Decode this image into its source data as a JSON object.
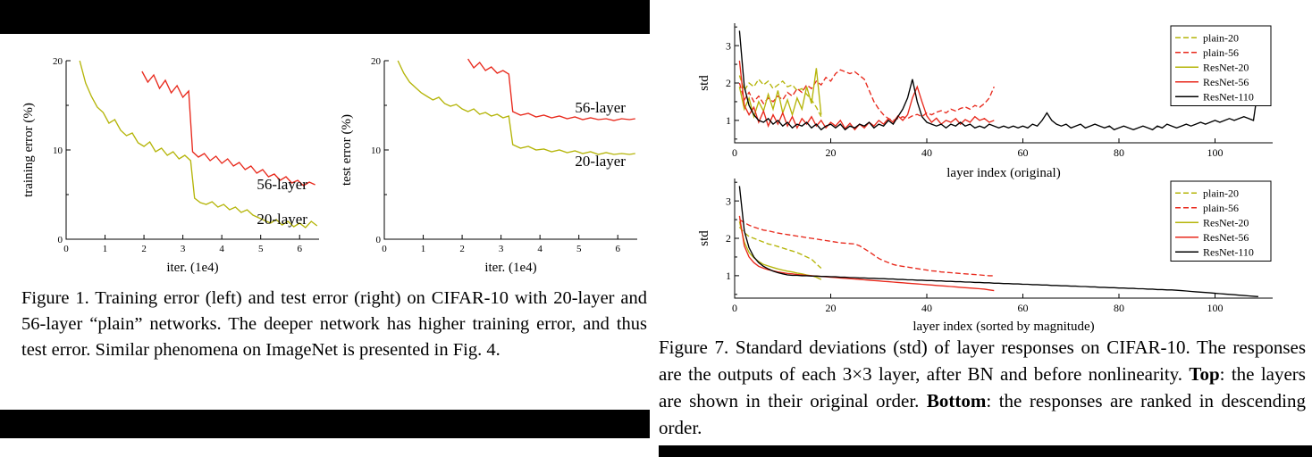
{
  "figure1": {
    "caption": "Figure 1. Training error (left) and test error (right) on CIFAR-10 with 20-layer and 56-layer “plain” networks. The deeper network has higher training error, and thus test error. Similar phenomena on ImageNet is presented in Fig. 4."
  },
  "figure7": {
    "caption_segments": [
      {
        "text": "Figure 7. Standard deviations (std) of layer responses on CIFAR-10. The responses are the outputs of each 3×3 layer, after BN and before nonlinearity. ",
        "bold": false
      },
      {
        "text": "Top",
        "bold": true
      },
      {
        "text": ": the layers are shown in their original order. ",
        "bold": false
      },
      {
        "text": "Bottom",
        "bold": true
      },
      {
        "text": ": the responses are ranked in descending order.",
        "bold": false
      }
    ]
  },
  "colors": {
    "yellow": "#b5b50a",
    "red": "#e8291c",
    "black": "#000000"
  },
  "chart_data": [
    {
      "id": "fig1-training-error",
      "type": "line",
      "xlabel": "iter. (1e4)",
      "ylabel": "training error (%)",
      "xlim": [
        0,
        6.5
      ],
      "ylim": [
        0,
        20
      ],
      "xticks": [
        0,
        1,
        2,
        3,
        4,
        5,
        6
      ],
      "yticks": [
        0,
        10,
        20
      ],
      "yticks_minor": [
        5,
        15
      ],
      "tick_fontsize": 11,
      "label_fontsize": 15,
      "annotation_fontsize": 17,
      "legend": false,
      "series": [
        {
          "name": "20-layer",
          "color": "#b5b50a",
          "dash": null,
          "x": [
            0.35,
            0.5,
            0.65,
            0.8,
            0.95,
            1.1,
            1.25,
            1.4,
            1.55,
            1.7,
            1.85,
            2.0,
            2.15,
            2.3,
            2.45,
            2.6,
            2.75,
            2.9,
            3.05,
            3.2,
            3.3,
            3.45,
            3.6,
            3.75,
            3.9,
            4.05,
            4.2,
            4.35,
            4.5,
            4.65,
            4.8,
            4.95,
            5.1,
            5.25,
            5.4,
            5.55,
            5.7,
            5.85,
            6.0,
            6.15,
            6.3,
            6.45
          ],
          "y": [
            20,
            17.5,
            16,
            14.8,
            14.2,
            13.0,
            13.4,
            12.2,
            11.6,
            11.9,
            10.8,
            10.4,
            10.9,
            9.8,
            10.2,
            9.4,
            9.8,
            9.0,
            9.4,
            8.8,
            4.6,
            4.1,
            3.9,
            4.2,
            3.6,
            3.9,
            3.3,
            3.6,
            3.0,
            3.3,
            2.7,
            2.4,
            2.1,
            1.8,
            2.2,
            1.6,
            2.0,
            1.4,
            1.8,
            1.3,
            2.0,
            1.5
          ]
        },
        {
          "name": "56-layer",
          "color": "#e8291c",
          "dash": null,
          "x": [
            1.95,
            2.1,
            2.25,
            2.4,
            2.55,
            2.7,
            2.85,
            3.0,
            3.15,
            3.25,
            3.4,
            3.55,
            3.7,
            3.85,
            4.0,
            4.15,
            4.3,
            4.45,
            4.6,
            4.75,
            4.9,
            5.05,
            5.2,
            5.35,
            5.5,
            5.65,
            5.8,
            5.95,
            6.1,
            6.25,
            6.4
          ],
          "y": [
            18.8,
            17.6,
            18.4,
            16.9,
            17.8,
            16.4,
            17.2,
            15.9,
            16.6,
            9.8,
            9.2,
            9.6,
            8.8,
            9.3,
            8.5,
            9.0,
            8.2,
            8.6,
            7.8,
            8.2,
            7.4,
            7.8,
            7.0,
            7.3,
            6.6,
            7.0,
            6.3,
            6.6,
            6.0,
            6.4,
            6.1
          ]
        }
      ],
      "annotations": [
        {
          "text": "56-layer",
          "x": 4.9,
          "y": 5.6
        },
        {
          "text": "20-layer",
          "x": 4.9,
          "y": 1.7
        }
      ]
    },
    {
      "id": "fig1-test-error",
      "type": "line",
      "xlabel": "iter. (1e4)",
      "ylabel": "test error (%)",
      "xlim": [
        0,
        6.5
      ],
      "ylim": [
        0,
        20
      ],
      "xticks": [
        0,
        1,
        2,
        3,
        4,
        5,
        6
      ],
      "yticks": [
        0,
        10,
        20
      ],
      "yticks_minor": [
        5,
        15
      ],
      "tick_fontsize": 11,
      "label_fontsize": 15,
      "annotation_fontsize": 17,
      "legend": false,
      "series": [
        {
          "name": "20-layer",
          "color": "#b5b50a",
          "dash": null,
          "x": [
            0.35,
            0.5,
            0.65,
            0.8,
            0.95,
            1.1,
            1.25,
            1.4,
            1.55,
            1.7,
            1.85,
            2.0,
            2.15,
            2.3,
            2.45,
            2.6,
            2.75,
            2.9,
            3.05,
            3.2,
            3.3,
            3.5,
            3.7,
            3.9,
            4.1,
            4.3,
            4.5,
            4.7,
            4.9,
            5.1,
            5.3,
            5.5,
            5.7,
            5.9,
            6.1,
            6.3,
            6.45
          ],
          "y": [
            20,
            18.6,
            17.6,
            17.0,
            16.4,
            16.0,
            15.6,
            15.9,
            15.2,
            14.9,
            15.1,
            14.6,
            14.3,
            14.6,
            14.0,
            14.2,
            13.8,
            14.0,
            13.6,
            13.8,
            10.6,
            10.2,
            10.4,
            10.0,
            10.1,
            9.8,
            10.0,
            9.7,
            9.9,
            9.6,
            9.8,
            9.5,
            9.7,
            9.5,
            9.6,
            9.5,
            9.6
          ]
        },
        {
          "name": "56-layer",
          "color": "#e8291c",
          "dash": null,
          "x": [
            2.15,
            2.3,
            2.45,
            2.6,
            2.75,
            2.9,
            3.05,
            3.2,
            3.3,
            3.5,
            3.7,
            3.9,
            4.1,
            4.3,
            4.5,
            4.7,
            4.9,
            5.1,
            5.3,
            5.5,
            5.7,
            5.9,
            6.1,
            6.3,
            6.45
          ],
          "y": [
            20.2,
            19.2,
            19.8,
            18.9,
            19.3,
            18.6,
            18.9,
            18.5,
            14.3,
            13.9,
            14.1,
            13.7,
            13.9,
            13.6,
            13.8,
            13.5,
            13.7,
            13.4,
            13.6,
            13.4,
            13.5,
            13.3,
            13.5,
            13.4,
            13.5
          ]
        }
      ],
      "annotations": [
        {
          "text": "56-layer",
          "x": 4.9,
          "y": 14.2
        },
        {
          "text": "20-layer",
          "x": 4.9,
          "y": 8.2
        }
      ]
    },
    {
      "id": "fig7-std-original-order",
      "type": "line",
      "xlabel": "layer index (original)",
      "ylabel": "std",
      "xlim": [
        0,
        112
      ],
      "ylim": [
        0.4,
        3.6
      ],
      "xticks": [
        0,
        20,
        40,
        60,
        80,
        100
      ],
      "yticks": [
        1,
        2,
        3
      ],
      "yticks_minor": [
        0.5,
        1.5,
        2.5,
        3.5
      ],
      "tick_fontsize": 12,
      "label_fontsize": 15,
      "legend": true,
      "legend_fontsize": 12,
      "series": [
        {
          "name": "plain-20",
          "color": "#b5b50a",
          "dash": "6,3",
          "y": [
            2.2,
            1.8,
            2.0,
            1.9,
            2.1,
            1.95,
            2.05,
            1.85,
            1.95,
            2.05,
            1.9,
            1.95,
            1.8,
            1.85,
            1.7,
            1.55,
            1.35,
            1.1
          ]
        },
        {
          "name": "plain-56",
          "color": "#e8291c",
          "dash": "6,3",
          "y": [
            2.0,
            1.55,
            1.75,
            1.5,
            1.65,
            1.45,
            1.6,
            1.5,
            1.65,
            1.55,
            1.75,
            1.65,
            1.85,
            1.75,
            1.95,
            1.85,
            2.05,
            1.95,
            2.15,
            2.05,
            2.25,
            2.35,
            2.3,
            2.25,
            2.3,
            2.2,
            2.1,
            1.8,
            1.5,
            1.3,
            1.15,
            1.05,
            1.0,
            1.05,
            1.1,
            1.05,
            1.12,
            1.16,
            1.1,
            1.2,
            1.15,
            1.22,
            1.26,
            1.2,
            1.3,
            1.25,
            1.32,
            1.36,
            1.3,
            1.4,
            1.35,
            1.45,
            1.6,
            1.9
          ]
        },
        {
          "name": "ResNet-20",
          "color": "#b5b50a",
          "dash": null,
          "y": [
            1.9,
            1.3,
            1.6,
            1.1,
            1.5,
            1.25,
            1.7,
            1.3,
            1.8,
            1.2,
            1.55,
            1.15,
            1.6,
            1.3,
            1.9,
            1.45,
            2.4,
            1.15
          ]
        },
        {
          "name": "ResNet-56",
          "color": "#e8291c",
          "dash": null,
          "y": [
            2.6,
            1.4,
            1.15,
            1.35,
            0.95,
            1.25,
            0.85,
            1.15,
            0.9,
            1.2,
            0.85,
            1.1,
            0.8,
            1.05,
            0.9,
            1.1,
            0.85,
            1.0,
            0.8,
            0.95,
            0.85,
            1.0,
            0.78,
            0.92,
            0.75,
            0.9,
            0.8,
            0.95,
            0.85,
            1.0,
            0.9,
            1.05,
            0.95,
            1.12,
            1.0,
            1.15,
            1.6,
            1.9,
            1.5,
            1.12,
            0.95,
            1.06,
            0.9,
            1.0,
            0.95,
            1.05,
            0.9,
            1.02,
            0.95,
            1.1,
            1.0,
            1.05,
            0.95,
            1.0
          ]
        },
        {
          "name": "ResNet-110",
          "color": "#000000",
          "dash": null,
          "y": [
            3.4,
            1.9,
            1.4,
            1.15,
            1.0,
            0.95,
            1.05,
            0.9,
            1.0,
            0.85,
            0.95,
            0.8,
            0.9,
            0.85,
            0.95,
            0.8,
            0.9,
            0.75,
            0.85,
            0.9,
            0.8,
            0.9,
            0.75,
            0.85,
            0.8,
            0.9,
            0.85,
            0.95,
            0.8,
            0.9,
            0.85,
            1.0,
            0.9,
            1.1,
            1.3,
            1.6,
            2.1,
            1.5,
            1.1,
            0.95,
            0.9,
            0.85,
            0.9,
            0.8,
            0.9,
            0.85,
            0.95,
            0.85,
            0.9,
            0.8,
            0.85,
            0.8,
            0.9,
            0.85,
            0.8,
            0.85,
            0.8,
            0.85,
            0.8,
            0.85,
            0.8,
            0.9,
            0.85,
            1.0,
            1.2,
            1.0,
            0.9,
            0.85,
            0.9,
            0.8,
            0.85,
            0.9,
            0.8,
            0.85,
            0.9,
            0.85,
            0.8,
            0.85,
            0.75,
            0.8,
            0.85,
            0.8,
            0.75,
            0.8,
            0.85,
            0.8,
            0.75,
            0.85,
            0.8,
            0.9,
            0.85,
            0.8,
            0.85,
            0.9,
            0.85,
            0.9,
            0.95,
            0.9,
            0.95,
            1.0,
            0.95,
            1.0,
            1.05,
            1.0,
            1.05,
            1.1,
            1.05,
            1.0,
            1.9
          ]
        }
      ],
      "annotations": []
    },
    {
      "id": "fig7-std-sorted",
      "type": "line",
      "xlabel": "layer index (sorted by magnitude)",
      "ylabel": "std",
      "xlim": [
        0,
        112
      ],
      "ylim": [
        0.4,
        3.6
      ],
      "xticks": [
        0,
        20,
        40,
        60,
        80,
        100
      ],
      "yticks": [
        1,
        2,
        3
      ],
      "yticks_minor": [
        0.5,
        1.5,
        2.5,
        3.5
      ],
      "tick_fontsize": 12,
      "label_fontsize": 15,
      "legend": true,
      "legend_fontsize": 12,
      "series": [
        {
          "name": "plain-20",
          "color": "#b5b50a",
          "dash": "6,3",
          "y": [
            2.3,
            2.15,
            2.05,
            2.0,
            1.95,
            1.9,
            1.85,
            1.82,
            1.78,
            1.74,
            1.7,
            1.66,
            1.62,
            1.56,
            1.5,
            1.44,
            1.32,
            1.2
          ]
        },
        {
          "name": "plain-56",
          "color": "#e8291c",
          "dash": "6,3",
          "y": [
            2.5,
            2.42,
            2.35,
            2.3,
            2.26,
            2.22,
            2.2,
            2.17,
            2.14,
            2.12,
            2.1,
            2.08,
            2.06,
            2.04,
            2.02,
            2.0,
            1.98,
            1.96,
            1.94,
            1.92,
            1.9,
            1.88,
            1.87,
            1.86,
            1.85,
            1.8,
            1.72,
            1.64,
            1.55,
            1.46,
            1.4,
            1.35,
            1.3,
            1.27,
            1.25,
            1.23,
            1.21,
            1.19,
            1.17,
            1.15,
            1.13,
            1.12,
            1.1,
            1.09,
            1.08,
            1.07,
            1.06,
            1.05,
            1.04,
            1.03,
            1.02,
            1.01,
            1.0,
            1.0
          ]
        },
        {
          "name": "ResNet-20",
          "color": "#b5b50a",
          "dash": null,
          "y": [
            2.45,
            1.9,
            1.62,
            1.48,
            1.38,
            1.3,
            1.26,
            1.22,
            1.18,
            1.15,
            1.12,
            1.1,
            1.07,
            1.05,
            1.02,
            1.0,
            0.96,
            0.9
          ]
        },
        {
          "name": "ResNet-56",
          "color": "#e8291c",
          "dash": null,
          "y": [
            2.6,
            1.8,
            1.5,
            1.35,
            1.25,
            1.2,
            1.16,
            1.13,
            1.1,
            1.08,
            1.06,
            1.05,
            1.03,
            1.02,
            1.01,
            1.0,
            0.99,
            0.98,
            0.97,
            0.96,
            0.95,
            0.94,
            0.93,
            0.92,
            0.91,
            0.9,
            0.89,
            0.88,
            0.87,
            0.86,
            0.85,
            0.84,
            0.83,
            0.82,
            0.81,
            0.8,
            0.79,
            0.78,
            0.77,
            0.76,
            0.75,
            0.74,
            0.73,
            0.72,
            0.71,
            0.7,
            0.69,
            0.68,
            0.67,
            0.66,
            0.65,
            0.64,
            0.62,
            0.6
          ]
        },
        {
          "name": "ResNet-110",
          "color": "#000000",
          "dash": null,
          "y": [
            3.4,
            2.2,
            1.75,
            1.5,
            1.35,
            1.25,
            1.18,
            1.12,
            1.08,
            1.05,
            1.02,
            1.01,
            1.01,
            1.0,
            1.0,
            0.99,
            0.99,
            0.98,
            0.98,
            0.97,
            0.97,
            0.96,
            0.96,
            0.95,
            0.95,
            0.94,
            0.94,
            0.93,
            0.93,
            0.92,
            0.92,
            0.91,
            0.91,
            0.9,
            0.9,
            0.89,
            0.89,
            0.88,
            0.88,
            0.87,
            0.87,
            0.86,
            0.86,
            0.85,
            0.85,
            0.84,
            0.84,
            0.83,
            0.83,
            0.82,
            0.82,
            0.81,
            0.81,
            0.8,
            0.8,
            0.79,
            0.79,
            0.78,
            0.78,
            0.77,
            0.77,
            0.76,
            0.76,
            0.75,
            0.75,
            0.74,
            0.74,
            0.73,
            0.73,
            0.72,
            0.72,
            0.71,
            0.71,
            0.7,
            0.7,
            0.69,
            0.69,
            0.68,
            0.68,
            0.67,
            0.67,
            0.66,
            0.66,
            0.65,
            0.65,
            0.64,
            0.64,
            0.63,
            0.63,
            0.62,
            0.62,
            0.61,
            0.6,
            0.59,
            0.58,
            0.57,
            0.56,
            0.55,
            0.54,
            0.53,
            0.52,
            0.51,
            0.5,
            0.49,
            0.48,
            0.47,
            0.46,
            0.45,
            0.44
          ]
        }
      ],
      "annotations": []
    }
  ]
}
